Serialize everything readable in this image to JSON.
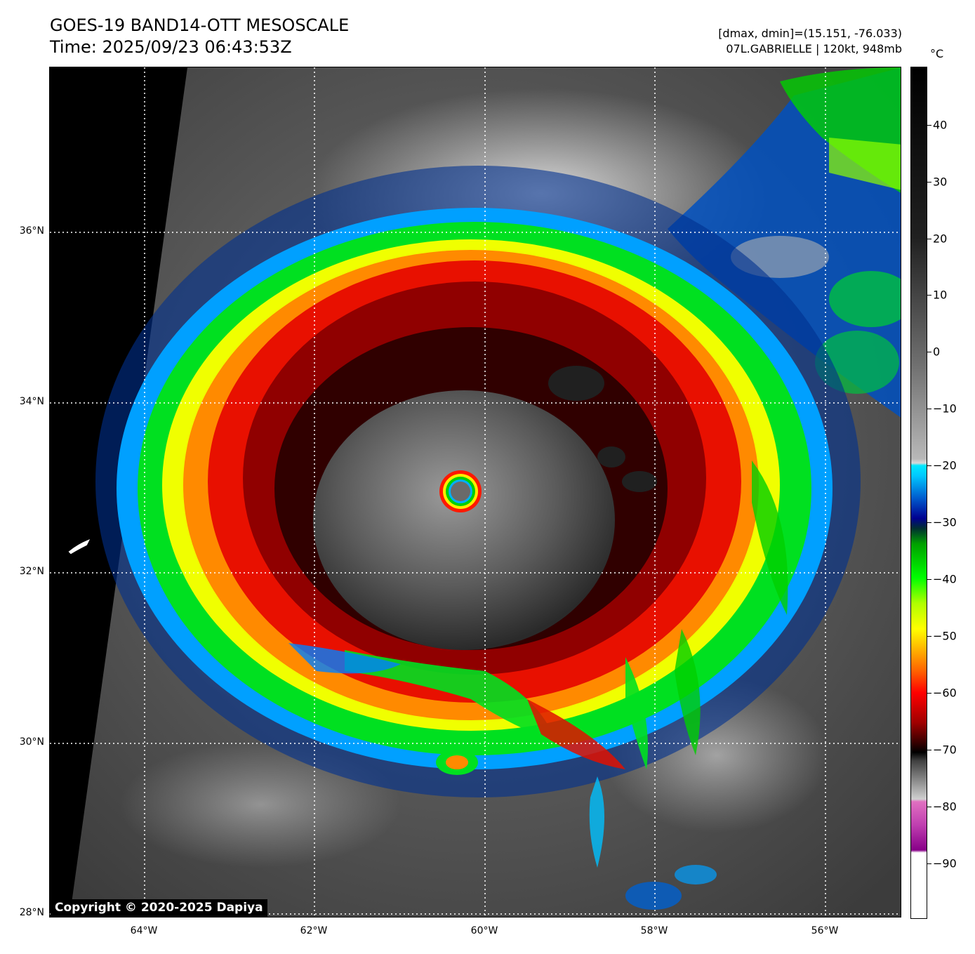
{
  "header": {
    "title_line1": "GOES-19 BAND14-OTT MESOSCALE",
    "title_line2": "Time: 2025/09/23 06:43:53Z",
    "info_line1": "[dmax, dmin]=(15.151, -76.033)",
    "info_line2": "07L.GABRIELLE | 120kt, 948mb"
  },
  "map": {
    "latitude_labels": [
      "36°N",
      "34°N",
      "32°N",
      "30°N",
      "28°N"
    ],
    "longitude_labels": [
      "64°W",
      "62°W",
      "60°W",
      "58°W",
      "56°W"
    ],
    "copyright": "Copyright © 2020-2025 Dapiya",
    "storm_name": "07L.GABRIELLE",
    "intensity": "120kt, 948mb"
  },
  "colorbar": {
    "unit": "°C",
    "tick_labels": [
      "40",
      "30",
      "20",
      "10",
      "0",
      "−10",
      "−20",
      "−30",
      "−40",
      "−50",
      "−60",
      "−70",
      "−80",
      "−90"
    ],
    "colors": [
      "#000000",
      "#ffffff",
      "#00e0ff",
      "#0038a0",
      "#00ff00",
      "#ffff00",
      "#ff6600",
      "#cc0000",
      "#000000",
      "#e060c0",
      "#880088"
    ]
  }
}
